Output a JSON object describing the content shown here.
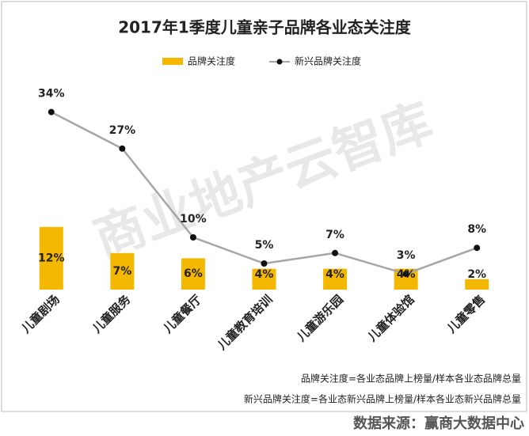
{
  "chart_data": {
    "type": "bar_line",
    "title": "2017年1季度儿童亲子品牌各业态关注度",
    "categories": [
      "儿童剧场",
      "儿童服务",
      "儿童餐厅",
      "儿童教育培训",
      "儿童游乐园",
      "儿童体验馆",
      "儿童零售"
    ],
    "series": [
      {
        "name": "品牌关注度",
        "type": "bar",
        "color": "#f5b800",
        "values": [
          12,
          7,
          6,
          4,
          4,
          4,
          2
        ],
        "value_labels": [
          "12%",
          "7%",
          "6%",
          "4%",
          "4%",
          "4%",
          "2%"
        ]
      },
      {
        "name": "新兴品牌关注度",
        "type": "line",
        "color": "#a6a6a6",
        "marker_color": "#111111",
        "values": [
          34,
          27,
          10,
          5,
          7,
          3,
          8
        ],
        "value_labels": [
          "34%",
          "27%",
          "10%",
          "5%",
          "7%",
          "3%",
          "8%"
        ]
      }
    ],
    "notes": [
      "品牌关注度=各业态品牌上榜量/样本各业态品牌总量",
      "新兴品牌关注度=各业态新兴品牌上榜量/样本各业态新兴品牌总量"
    ],
    "watermark": "商业地产云智库",
    "source": "数据来源：赢商大数据中心"
  }
}
